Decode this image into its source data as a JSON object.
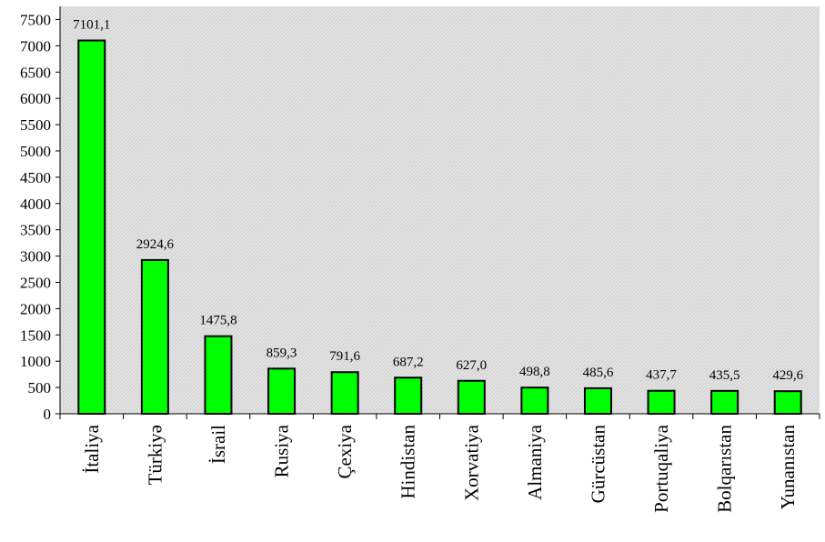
{
  "chart_data": {
    "type": "bar",
    "categories": [
      "İtaliya",
      "Türkiyə",
      "İsrail",
      "Rusiya",
      "Çexiya",
      "Hindistan",
      "Xorvatiya",
      "Almaniya",
      "Gürcüstan",
      "Portuqaliya",
      "Bolqarıstan",
      "Yunanıstan"
    ],
    "values": [
      7101.1,
      2924.6,
      1475.8,
      859.3,
      791.6,
      687.2,
      627.0,
      498.8,
      485.6,
      437.7,
      435.5,
      429.6
    ],
    "data_labels": [
      "7101,1",
      "2924,6",
      "1475,8",
      "859,3",
      "791,6",
      "687,2",
      "627,0",
      "498,8",
      "485,6",
      "437,7",
      "435,5",
      "429,6"
    ],
    "y_ticks": [
      0,
      500,
      1000,
      1500,
      2000,
      2500,
      3000,
      3500,
      4000,
      4500,
      5000,
      5500,
      6000,
      6500,
      7000,
      7500
    ],
    "ylim": [
      0,
      7750
    ],
    "grid": false,
    "bar_color": "#00ff00",
    "bar_border_color": "#000000",
    "plot_background": "hatched light gray"
  }
}
